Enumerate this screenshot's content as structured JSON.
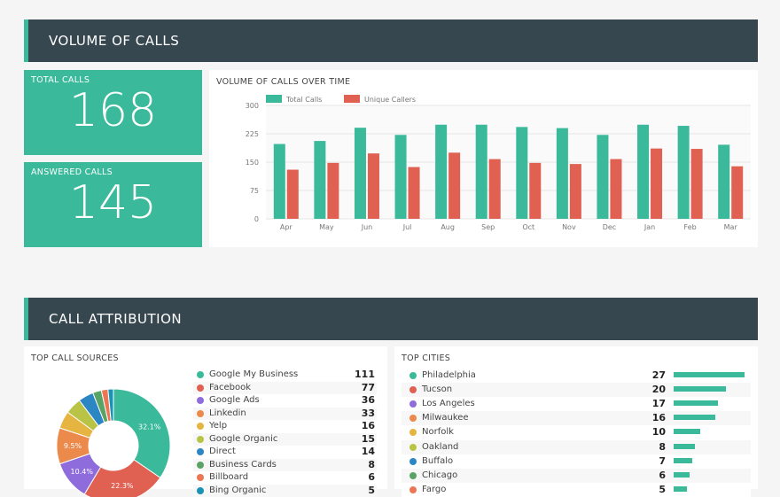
{
  "volume_header": "VOLUME OF CALLS",
  "total_calls": {
    "label": "TOTAL CALLS",
    "value": "168"
  },
  "answered_calls": {
    "label": "ANSWERED CALLS",
    "value": "145"
  },
  "attribution_header": "CALL ATTRIBUTION",
  "colors": {
    "green": "#3ab99b",
    "red": "#e06052",
    "header": "#36474f"
  },
  "chart_data": [
    {
      "type": "bar",
      "title": "VOLUME OF CALLS OVER TIME",
      "legend": "top-left",
      "grid": true,
      "categories": [
        "Apr",
        "May",
        "Jun",
        "Jul",
        "Aug",
        "Sep",
        "Oct",
        "Nov",
        "Dec",
        "Jan",
        "Feb",
        "Mar"
      ],
      "ylim": [
        0,
        300
      ],
      "yticks": [
        "0",
        "75",
        "150",
        "225",
        "300"
      ],
      "series": [
        {
          "name": "Total Calls",
          "color": "#3ab99b",
          "values": [
            198,
            206,
            241,
            222,
            249,
            249,
            243,
            240,
            222,
            249,
            246,
            196
          ]
        },
        {
          "name": "Unique Callers",
          "color": "#e06052",
          "values": [
            130,
            148,
            173,
            137,
            175,
            158,
            148,
            145,
            158,
            186,
            185,
            139
          ]
        }
      ]
    },
    {
      "type": "pie",
      "title": "TOP CALL SOURCES",
      "slices": [
        {
          "name": "Google My Business",
          "value": 111,
          "label": "32.1%",
          "color": "#3ab99b"
        },
        {
          "name": "Facebook",
          "value": 77,
          "label": "22.3%",
          "color": "#e06052"
        },
        {
          "name": "Google Ads",
          "value": 36,
          "label": "10.4%",
          "color": "#8e6cdb"
        },
        {
          "name": "Linkedin",
          "value": 33,
          "label": "9.5%",
          "color": "#ec8a4c"
        },
        {
          "name": "Yelp",
          "value": 16,
          "label": "",
          "color": "#e6b440"
        },
        {
          "name": "Google Organic",
          "value": 15,
          "label": "",
          "color": "#b9c446"
        },
        {
          "name": "Direct",
          "value": 14,
          "label": "",
          "color": "#2d86c4"
        },
        {
          "name": "Business Cards",
          "value": 8,
          "label": "",
          "color": "#5aa366"
        },
        {
          "name": "Billboard",
          "value": 6,
          "label": "",
          "color": "#ec7654"
        },
        {
          "name": "Bing Organic",
          "value": 5,
          "label": "",
          "color": "#1993b5"
        }
      ]
    },
    {
      "type": "bar",
      "orientation": "horizontal",
      "title": "TOP CITIES",
      "rows": [
        {
          "name": "Philadelphia",
          "value": 27,
          "color": "#3ab99b"
        },
        {
          "name": "Tucson",
          "value": 20,
          "color": "#e06052"
        },
        {
          "name": "Los Angeles",
          "value": 17,
          "color": "#8e6cdb"
        },
        {
          "name": "Milwaukee",
          "value": 16,
          "color": "#ec8a4c"
        },
        {
          "name": "Norfolk",
          "value": 10,
          "color": "#e6b440"
        },
        {
          "name": "Oakland",
          "value": 8,
          "color": "#b9c446"
        },
        {
          "name": "Buffalo",
          "value": 7,
          "color": "#2d86c4"
        },
        {
          "name": "Chicago",
          "value": 6,
          "color": "#5aa366"
        },
        {
          "name": "Fargo",
          "value": 5,
          "color": "#ec7654"
        }
      ]
    }
  ]
}
